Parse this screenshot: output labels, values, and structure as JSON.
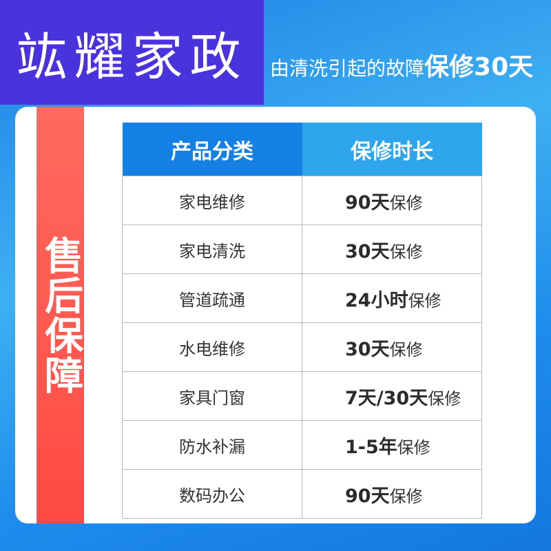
{
  "brand": {
    "title": "竑耀家政"
  },
  "slogan": {
    "text": "由清洗引起的故障",
    "highlight": "保修30天"
  },
  "side_label": "售后保障",
  "table": {
    "headers": [
      "产品分类",
      "保修时长"
    ],
    "rows": [
      {
        "category": "家电维修",
        "duration_bold": "90天",
        "duration_suffix": "保修"
      },
      {
        "category": "家电清洗",
        "duration_bold": "30天",
        "duration_suffix": "保修"
      },
      {
        "category": "管道疏通",
        "duration_bold": "24小时",
        "duration_suffix": "保修"
      },
      {
        "category": "水电维修",
        "duration_bold": "30天",
        "duration_suffix": "保修"
      },
      {
        "category": "家具门窗",
        "duration_bold": "7天/30天",
        "duration_suffix": "保修"
      },
      {
        "category": "防水补漏",
        "duration_bold": "1-5年",
        "duration_suffix": "保修"
      },
      {
        "category": "数码办公",
        "duration_bold": "90天",
        "duration_suffix": "保修"
      }
    ]
  },
  "colors": {
    "brand_bg": "#4a32dc",
    "accent_red": "#ff4a44",
    "header_left": "#1480e4",
    "header_right": "#2fa6ec"
  }
}
